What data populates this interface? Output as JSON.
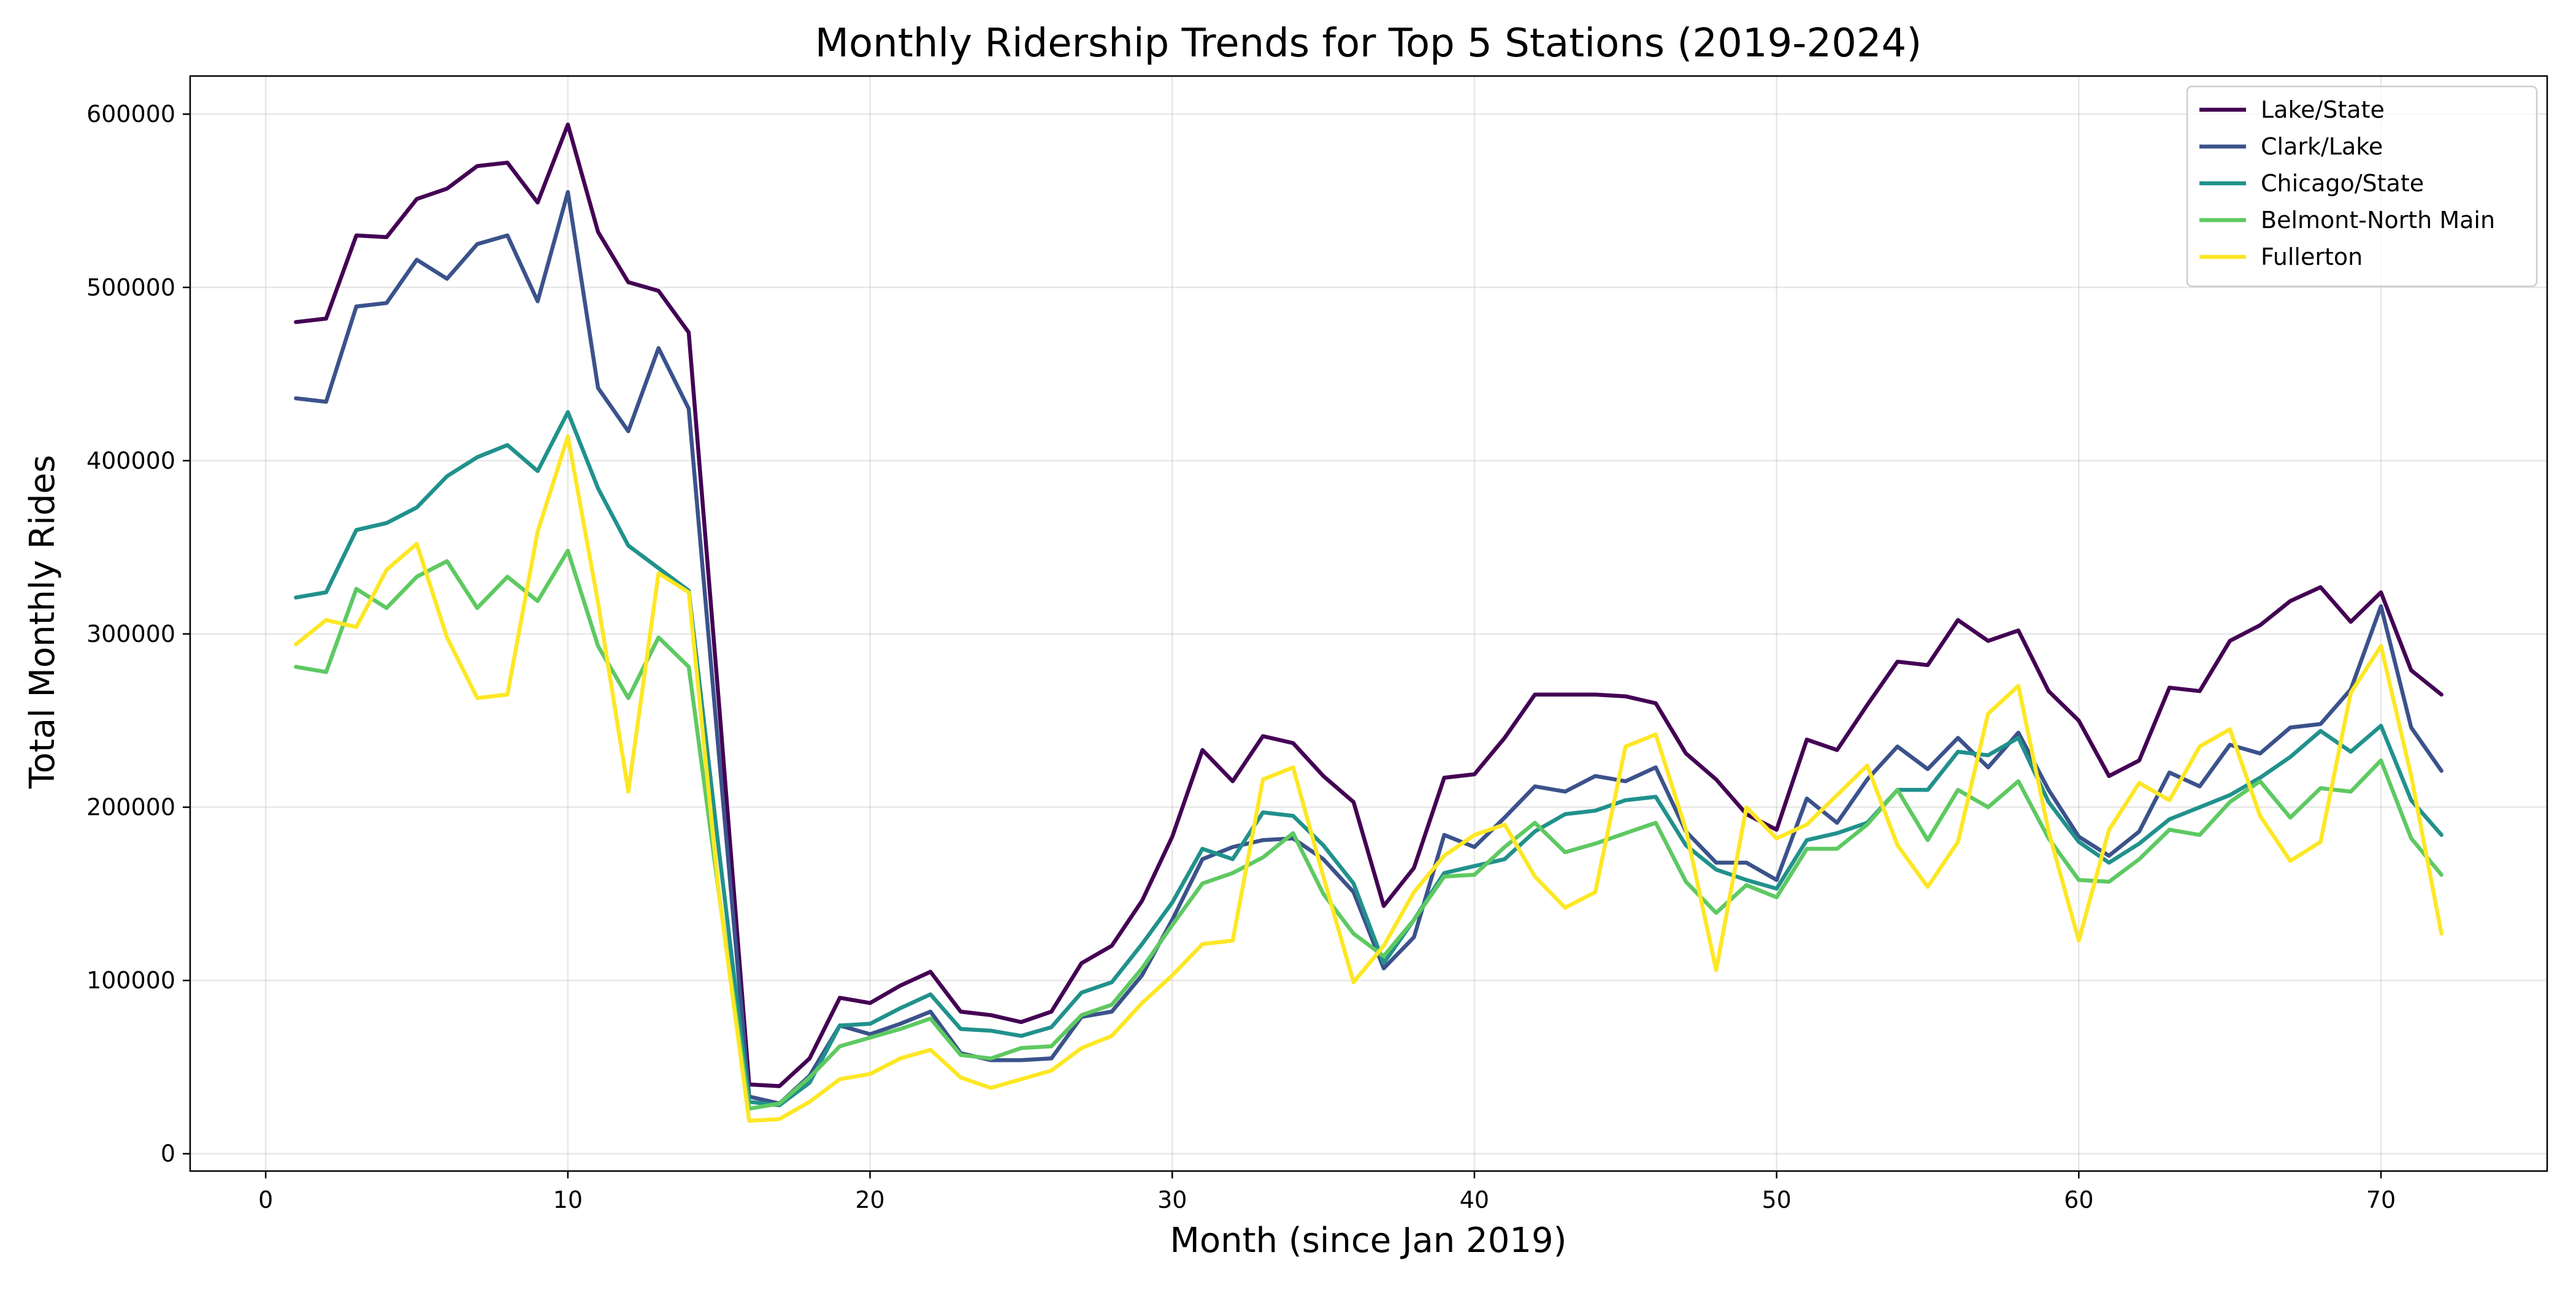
{
  "chart_data": {
    "type": "line",
    "title": "Monthly Ridership Trends for Top 5 Stations (2019-2024)",
    "xlabel": "Month (since Jan 2019)",
    "ylabel": "Total Monthly Rides",
    "xlim": [
      -2.5,
      75.5
    ],
    "ylim": [
      -10000,
      622000
    ],
    "xticks": [
      0,
      10,
      20,
      30,
      40,
      50,
      60,
      70
    ],
    "yticks": [
      0,
      100000,
      200000,
      300000,
      400000,
      500000,
      600000
    ],
    "grid": true,
    "legend_position": "top-right",
    "series": [
      {
        "name": "Lake/State",
        "color": "#440154",
        "values": [
          480000,
          482000,
          530000,
          529000,
          551000,
          557000,
          570000,
          572000,
          549000,
          594000,
          532000,
          503000,
          498000,
          474000,
          260000,
          40000,
          39000,
          55000,
          90000,
          87000,
          97000,
          105000,
          82000,
          80000,
          76000,
          82000,
          110000,
          120000,
          146000,
          183000,
          233000,
          215000,
          241000,
          237000,
          218000,
          203000,
          143000,
          165000,
          217000,
          219000,
          240000,
          265000,
          265000,
          265000,
          264000,
          260000,
          231000,
          216000,
          196000,
          187000,
          239000,
          233000,
          259000,
          284000,
          282000,
          308000,
          296000,
          302000,
          267000,
          250000,
          218000,
          227000,
          269000,
          267000,
          296000,
          305000,
          319000,
          327000,
          307000,
          324000,
          279000,
          265000
        ]
      },
      {
        "name": "Clark/Lake",
        "color": "#3b528b",
        "values": [
          436000,
          434000,
          489000,
          491000,
          516000,
          505000,
          525000,
          530000,
          492000,
          555000,
          442000,
          417000,
          465000,
          430000,
          230000,
          33000,
          29000,
          45000,
          74000,
          69000,
          75000,
          82000,
          58000,
          54000,
          54000,
          55000,
          79000,
          82000,
          103000,
          135000,
          170000,
          177000,
          181000,
          182000,
          170000,
          151000,
          107000,
          125000,
          184000,
          177000,
          194000,
          212000,
          209000,
          218000,
          215000,
          223000,
          186000,
          168000,
          168000,
          158000,
          205000,
          191000,
          216000,
          235000,
          222000,
          240000,
          223000,
          243000,
          210000,
          183000,
          172000,
          186000,
          220000,
          212000,
          236000,
          231000,
          246000,
          248000,
          268000,
          316000,
          246000,
          221000
        ]
      },
      {
        "name": "Chicago/State",
        "color": "#21918c",
        "values": [
          321000,
          324000,
          360000,
          364000,
          373000,
          391000,
          402000,
          409000,
          394000,
          428000,
          384000,
          351000,
          338000,
          325000,
          175000,
          30000,
          28000,
          41000,
          74000,
          75000,
          84000,
          92000,
          72000,
          71000,
          68000,
          73000,
          93000,
          99000,
          121000,
          145000,
          176000,
          170000,
          197000,
          195000,
          178000,
          156000,
          110000,
          135000,
          162000,
          166000,
          170000,
          186000,
          196000,
          198000,
          204000,
          206000,
          178000,
          164000,
          158000,
          153000,
          181000,
          185000,
          191000,
          210000,
          210000,
          232000,
          230000,
          240000,
          203000,
          180000,
          168000,
          179000,
          193000,
          200000,
          207000,
          217000,
          229000,
          244000,
          232000,
          247000,
          204000,
          184000
        ]
      },
      {
        "name": "Belmont-North Main",
        "color": "#5ec962",
        "values": [
          281000,
          278000,
          326000,
          315000,
          333000,
          342000,
          315000,
          333000,
          319000,
          348000,
          293000,
          263000,
          298000,
          281000,
          150000,
          26000,
          29000,
          44000,
          62000,
          67000,
          72000,
          78000,
          57000,
          55000,
          61000,
          62000,
          80000,
          86000,
          107000,
          132000,
          156000,
          162000,
          171000,
          185000,
          150000,
          127000,
          114000,
          135000,
          160000,
          161000,
          177000,
          191000,
          174000,
          179000,
          185000,
          191000,
          157000,
          139000,
          155000,
          148000,
          176000,
          176000,
          190000,
          210000,
          181000,
          210000,
          200000,
          215000,
          182000,
          158000,
          157000,
          170000,
          187000,
          184000,
          203000,
          215000,
          194000,
          211000,
          209000,
          227000,
          182000,
          161000
        ]
      },
      {
        "name": "Fullerton",
        "color": "#fde725",
        "values": [
          294000,
          308000,
          304000,
          337000,
          352000,
          298000,
          263000,
          265000,
          359000,
          414000,
          318000,
          209000,
          335000,
          324000,
          150000,
          19000,
          20000,
          30000,
          43000,
          46000,
          55000,
          60000,
          44000,
          38000,
          43000,
          48000,
          61000,
          68000,
          87000,
          103000,
          121000,
          123000,
          216000,
          223000,
          160000,
          99000,
          120000,
          151000,
          172000,
          184000,
          190000,
          160000,
          142000,
          151000,
          235000,
          242000,
          187000,
          106000,
          200000,
          182000,
          190000,
          207000,
          224000,
          178000,
          154000,
          180000,
          254000,
          270000,
          186000,
          123000,
          187000,
          214000,
          204000,
          235000,
          245000,
          195000,
          169000,
          180000,
          266000,
          293000,
          218000,
          127000
        ]
      }
    ]
  }
}
